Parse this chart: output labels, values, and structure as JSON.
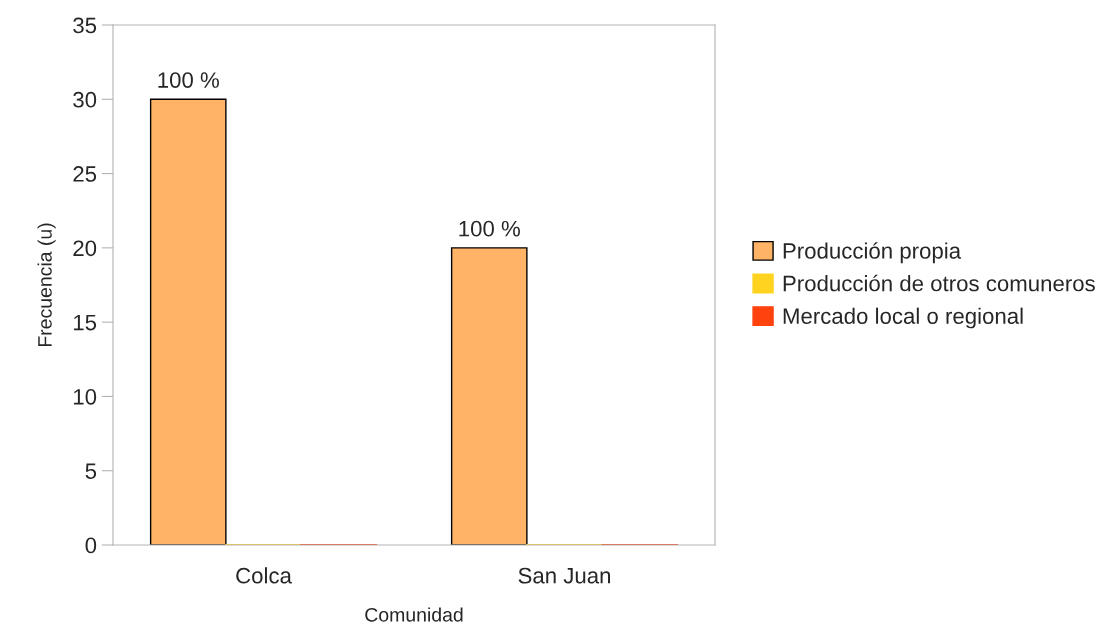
{
  "chart_data": {
    "type": "bar",
    "xlabel": "Comunidad",
    "ylabel": "Frecuencia (u)",
    "categories": [
      "Colca",
      "San Juan"
    ],
    "series": [
      {
        "name": "Producción propia",
        "color": "#ffb366",
        "values": [
          30,
          20
        ]
      },
      {
        "name": "Producción de otros comuneros",
        "color": "#ffd320",
        "values": [
          0,
          0
        ]
      },
      {
        "name": "Mercado local o regional",
        "color": "#ff420e",
        "values": [
          0,
          0
        ]
      }
    ],
    "ylim": [
      0,
      35
    ],
    "yticks": [
      0,
      5,
      10,
      15,
      20,
      25,
      30,
      35
    ],
    "grid": false,
    "annotations": [
      "100 %",
      "100 %"
    ],
    "legend": "right"
  }
}
